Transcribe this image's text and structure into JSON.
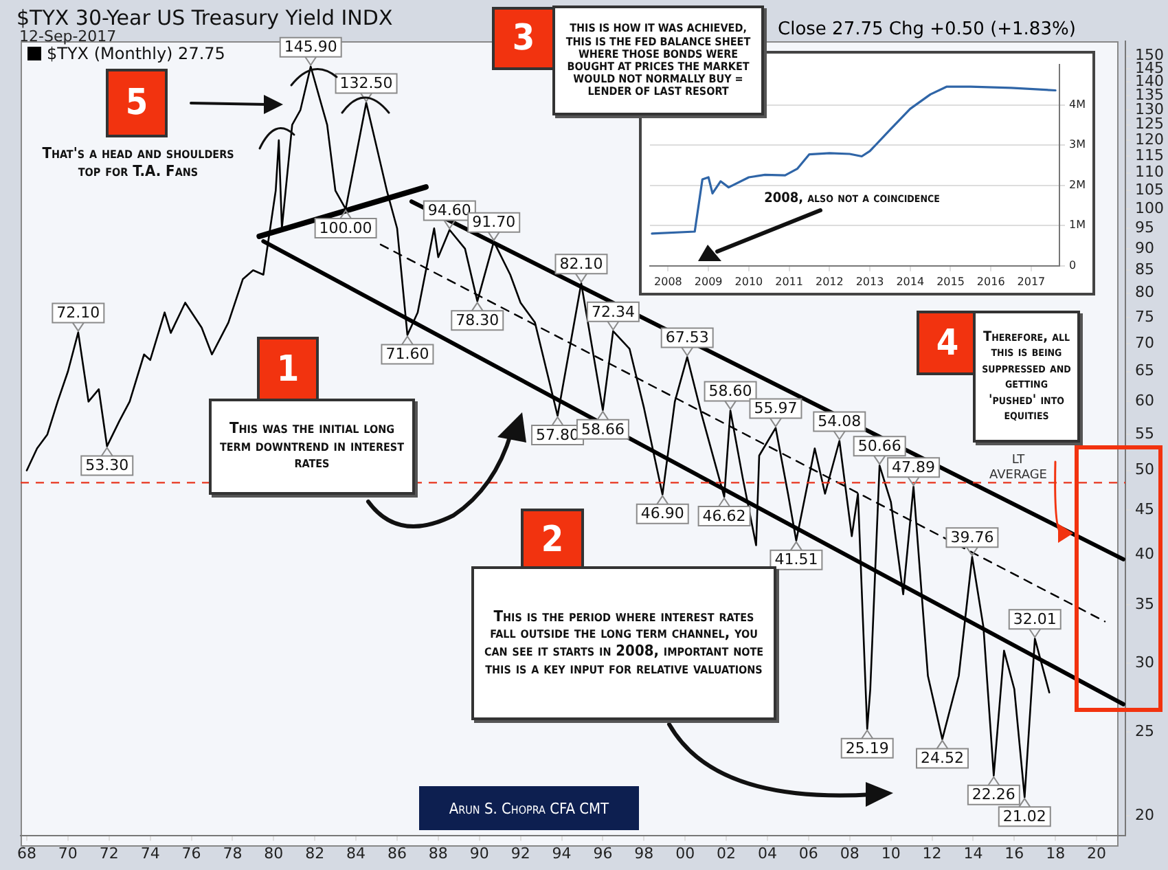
{
  "chart_data": [
    {
      "type": "line",
      "title": "$TYX 30-Year US Treasury Yield INDX",
      "subtitle": "12-Sep-2017",
      "annotations": [
        "Close 27.75 Chg +0.50 (+1.83%)",
        "1",
        "This was the initial long term downtrend in interest rates",
        "2",
        "This is the period where interest rates fall outside the long term channel, you can see it starts in 2008, important note this is a key input for relative valuations",
        "3",
        "THIS IS HOW IT WAS ACHIEVED, THIS IS THE FED BALANCE SHEET WHERE THOSE BONDS WERE BOUGHT AT PRICES THE MARKET WOULD NOT NORMALLY BUY = LENDER OF LAST RESORT",
        "4",
        "Therefore, all this is being suppressed and getting 'pushed' into equities",
        "5",
        "That's a head and shoulders top for T.A. Fans",
        "Arun S. Chopra CFA CMT"
      ],
      "xlim": [
        1967.7,
        2021.4
      ],
      "xticks": [
        {
          "value": 1968,
          "label": "68"
        },
        {
          "value": 1970,
          "label": "70"
        },
        {
          "value": 1972,
          "label": "72"
        },
        {
          "value": 1974,
          "label": "74"
        },
        {
          "value": 1976,
          "label": "76"
        },
        {
          "value": 1978,
          "label": "78"
        },
        {
          "value": 1980,
          "label": "80"
        },
        {
          "value": 1982,
          "label": "82"
        },
        {
          "value": 1984,
          "label": "84"
        },
        {
          "value": 1986,
          "label": "86"
        },
        {
          "value": 1988,
          "label": "88"
        },
        {
          "value": 1990,
          "label": "90"
        },
        {
          "value": 1992,
          "label": "92"
        },
        {
          "value": 1994,
          "label": "94"
        },
        {
          "value": 1996,
          "label": "96"
        },
        {
          "value": 1998,
          "label": "98"
        },
        {
          "value": 2000,
          "label": "00"
        },
        {
          "value": 2002,
          "label": "02"
        },
        {
          "value": 2004,
          "label": "04"
        },
        {
          "value": 2006,
          "label": "06"
        },
        {
          "value": 2008,
          "label": "08"
        },
        {
          "value": 2010,
          "label": "10"
        },
        {
          "value": 2012,
          "label": "12"
        },
        {
          "value": 2014,
          "label": "14"
        },
        {
          "value": 2016,
          "label": "16"
        },
        {
          "value": 2018,
          "label": "18"
        },
        {
          "value": 2020,
          "label": "20"
        }
      ],
      "ylim": [
        19,
        156
      ],
      "yticks": [
        20,
        25,
        30,
        35,
        40,
        45,
        50,
        55,
        60,
        65,
        70,
        75,
        80,
        85,
        90,
        95,
        100,
        105,
        110,
        115,
        120,
        125,
        130,
        135,
        140,
        145,
        150
      ],
      "log": true,
      "grid": false,
      "legend": "top left",
      "marker": "none",
      "ref_lines": [
        {
          "axis": "y",
          "value": 48.4,
          "label": "LT AVERAGE",
          "color": "#e8341c",
          "line_style": "dashed"
        }
      ],
      "series": [
        {
          "name": "$TYX (Monthly) 27.75",
          "color": "#000000",
          "x": [
            1968.0,
            1968.5,
            1969.0,
            1969.5,
            1970.0,
            1970.5,
            1971.0,
            1971.5,
            1971.9,
            1972.5,
            1973.0,
            1973.7,
            1974.0,
            1974.7,
            1975.0,
            1975.7,
            1976.5,
            1977.0,
            1977.8,
            1978.5,
            1979.0,
            1979.5,
            1980.1,
            1980.25,
            1980.4,
            1980.9,
            1981.3,
            1981.8,
            1982.2,
            1982.6,
            1983.0,
            1983.5,
            1984.0,
            1984.5,
            1985.0,
            1985.5,
            1986.0,
            1986.5,
            1987.0,
            1987.8,
            1988.0,
            1988.55,
            1989.3,
            1989.9,
            1990.7,
            1991.5,
            1992.0,
            1992.7,
            1993.8,
            1994.95,
            1996.0,
            1996.5,
            1997.3,
            1998.0,
            1998.9,
            1999.5,
            2000.1,
            2000.8,
            2001.9,
            2002.2,
            2002.8,
            2003.45,
            2003.6,
            2004.4,
            2005.0,
            2005.4,
            2006.3,
            2006.8,
            2007.5,
            2008.1,
            2008.4,
            2008.85,
            2009.0,
            2009.45,
            2010.0,
            2010.6,
            2011.1,
            2011.8,
            2012.5,
            2013.3,
            2013.95,
            2014.5,
            2015.0,
            2015.5,
            2016.0,
            2016.5,
            2017.0,
            2017.7
          ],
          "values": [
            50,
            53,
            55,
            60,
            65,
            72.1,
            60,
            62,
            53.3,
            57,
            60,
            68,
            67,
            76,
            72,
            78,
            73,
            68,
            74,
            83,
            85,
            84,
            105,
            120,
            95,
            125,
            130,
            145.9,
            135,
            125,
            105,
            100,
            115,
            132.5,
            118,
            105,
            95,
            71.6,
            76,
            95,
            88,
            94.6,
            90,
            78.3,
            91.7,
            84,
            78,
            74,
            57.8,
            82.1,
            58.66,
            72.34,
            69,
            59,
            46.9,
            60,
            67.53,
            58,
            46.62,
            58.6,
            49,
            41,
            52,
            55.97,
            47,
            41.51,
            53,
            47,
            54.08,
            42,
            47,
            25.19,
            28,
            50.66,
            46,
            36,
            47.89,
            29,
            24.52,
            29,
            39.76,
            33,
            22.26,
            31,
            28,
            21.02,
            32.01,
            27.75
          ],
          "value_labels": [
            null,
            null,
            null,
            null,
            null,
            "72.10",
            null,
            null,
            "53.30",
            null,
            null,
            null,
            null,
            null,
            null,
            null,
            null,
            null,
            null,
            null,
            null,
            null,
            null,
            null,
            null,
            null,
            null,
            "145.90",
            null,
            null,
            null,
            "100.00",
            null,
            "132.50",
            null,
            null,
            null,
            "71.60",
            null,
            null,
            null,
            "94.60",
            null,
            "78.30",
            "91.70",
            null,
            null,
            null,
            "57.80",
            "82.10",
            "58.66",
            "72.34",
            null,
            null,
            "46.90",
            null,
            "67.53",
            null,
            "46.62",
            "58.60",
            null,
            null,
            null,
            "55.97",
            null,
            "41.51",
            null,
            null,
            "54.08",
            null,
            null,
            "25.19",
            null,
            "50.66",
            null,
            null,
            "47.89",
            null,
            "24.52",
            null,
            "39.76",
            null,
            "22.26",
            null,
            null,
            "21.02",
            "32.01",
            null
          ]
        },
        {
          "type": "line",
          "color": "#000000",
          "x": [
            1986.7,
            2021.3
          ],
          "values": [
            102,
            39.5
          ]
        },
        {
          "type": "line",
          "color": "#000000",
          "x": [
            1979.5,
            2021.3
          ],
          "values": [
            91.8,
            26.9
          ]
        },
        {
          "type": "line",
          "color": "#000000",
          "line_style": "dashed",
          "x": [
            1985.2,
            2020.4
          ],
          "values": [
            91,
            33.5
          ]
        },
        {
          "type": "line",
          "color": "#000000",
          "x": [
            1979.3,
            1987.4
          ],
          "values": [
            93,
            106
          ]
        }
      ]
    },
    {
      "type": "line",
      "annotations": [
        "2008, also not a coincidence"
      ],
      "xlim": [
        2007.55,
        2017.7
      ],
      "xticks": [
        2008,
        2009,
        2010,
        2011,
        2012,
        2013,
        2014,
        2015,
        2016,
        2017
      ],
      "ylim": [
        0,
        5
      ],
      "yticks": [
        0,
        {
          "value": 1,
          "label": "1M"
        },
        {
          "value": 2,
          "label": "2M"
        },
        {
          "value": 3,
          "label": "3M"
        },
        {
          "value": 4,
          "label": "4M"
        }
      ],
      "grid": "y",
      "marker": "none",
      "series": [
        {
          "color": "#2f65a7",
          "x": [
            2007.6,
            2008.66,
            2008.85,
            2009.0,
            2009.1,
            2009.3,
            2009.5,
            2010.0,
            2010.4,
            2010.9,
            2011.2,
            2011.5,
            2012.0,
            2012.5,
            2012.8,
            2013.0,
            2013.5,
            2014.0,
            2014.5,
            2014.9,
            2015.5,
            2016.5,
            2017.6
          ],
          "values": [
            0.8,
            0.85,
            2.15,
            2.2,
            1.8,
            2.1,
            1.95,
            2.2,
            2.26,
            2.25,
            2.41,
            2.77,
            2.8,
            2.78,
            2.72,
            2.85,
            3.38,
            3.9,
            4.26,
            4.45,
            4.45,
            4.42,
            4.36
          ]
        }
      ]
    }
  ]
}
